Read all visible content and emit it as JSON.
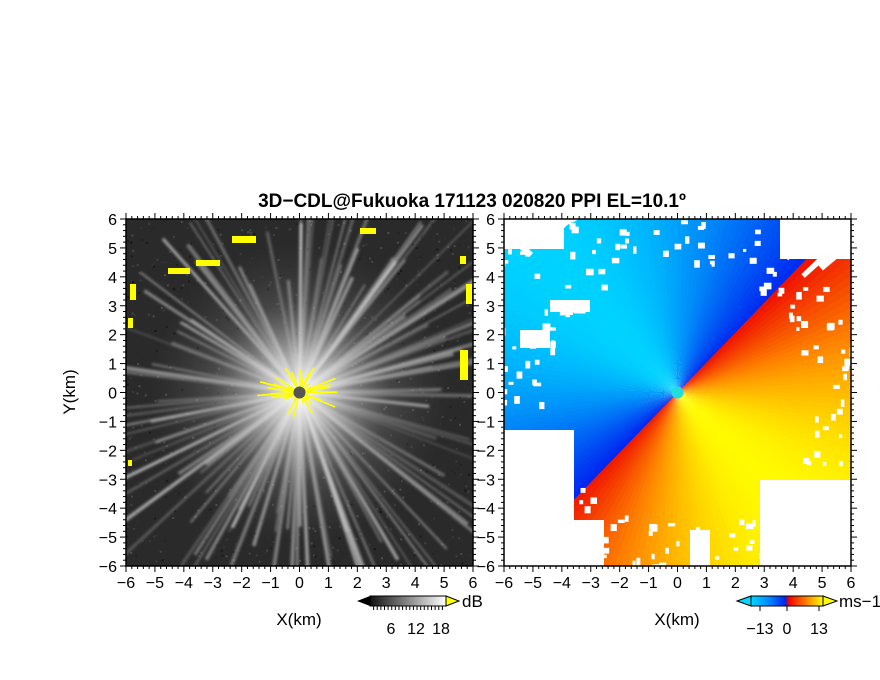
{
  "figure": {
    "title": "3D−CDL@Fukuoka 171123 020820 PPI EL=10.1º"
  },
  "chart_data": [
    {
      "type": "heatmap",
      "panel": "left",
      "quantity": "echo intensity (PPI, SNR)",
      "xlabel": "X(km)",
      "ylabel": "Y(km)",
      "xlim": [
        -6,
        6
      ],
      "ylim": [
        -6,
        6
      ],
      "xticks": [
        "−6",
        "−5",
        "−4",
        "−3",
        "−2",
        "−1",
        "0",
        "1",
        "2",
        "3",
        "4",
        "5",
        "6"
      ],
      "yticks": [
        "6",
        "5",
        "4",
        "3",
        "2",
        "1",
        "0",
        "−1",
        "−2",
        "−3",
        "−4",
        "−5",
        "−6"
      ],
      "colormap": "grayscale (black to white), values above range in yellow",
      "colorbar": {
        "unit": "dB",
        "ticks": [
          "6",
          "12",
          "18"
        ],
        "min": 0,
        "max": 21
      },
      "colors": {
        "low": "#222222",
        "high": "#ffffff",
        "over": "#ffff00"
      },
      "radar_center": [
        0,
        0
      ]
    },
    {
      "type": "heatmap",
      "panel": "right",
      "quantity": "Doppler velocity (PPI)",
      "xlabel": "X(km)",
      "xlim": [
        -6,
        6
      ],
      "ylim": [
        -6,
        6
      ],
      "xticks": [
        "−6",
        "−5",
        "−4",
        "−3",
        "−2",
        "−1",
        "0",
        "1",
        "2",
        "3",
        "4",
        "5",
        "6"
      ],
      "yticks": [
        "6",
        "5",
        "4",
        "3",
        "2",
        "1",
        "0",
        "−1",
        "−2",
        "−3",
        "−4",
        "−5",
        "−6"
      ],
      "colormap": "cyan–blue (negative) to red–orange–yellow (positive)",
      "colorbar": {
        "unit": "ms−1",
        "ticks": [
          "−13",
          "0",
          "13"
        ],
        "min": -20,
        "max": 20
      },
      "colors": {
        "neg_far": "#00ccff",
        "neg_near": "#0033ff",
        "pos_near": "#ff1100",
        "pos_far": "#ffff00"
      },
      "radar_center": [
        0,
        0
      ]
    }
  ]
}
